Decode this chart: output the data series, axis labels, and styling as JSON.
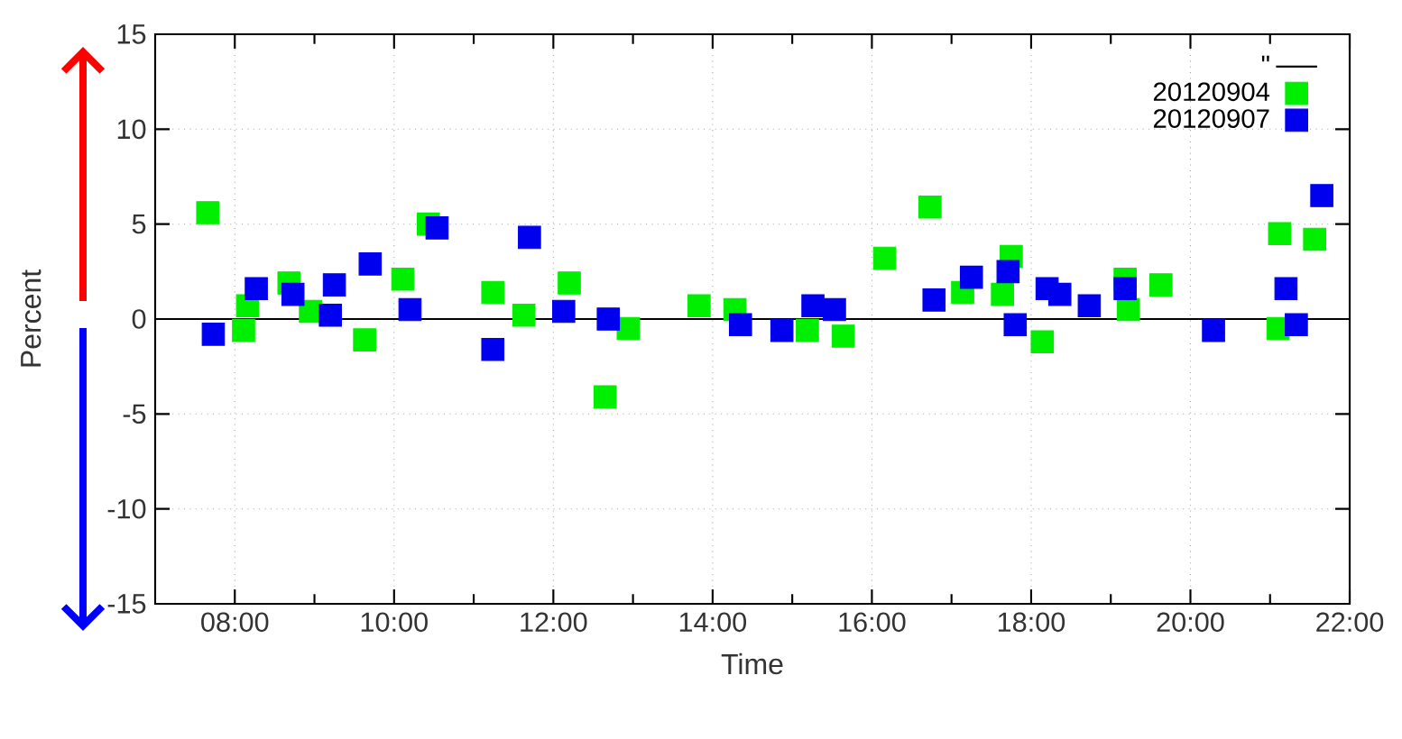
{
  "chart_data": {
    "type": "scatter",
    "xlabel": "Time",
    "ylabel": "Percent",
    "xlim": [
      7,
      22
    ],
    "ylim": [
      -15,
      15
    ],
    "xticks": [
      {
        "value": 8,
        "label": "08:00"
      },
      {
        "value": 9,
        "label": null
      },
      {
        "value": 10,
        "label": "10:00"
      },
      {
        "value": 11,
        "label": null
      },
      {
        "value": 12,
        "label": "12:00"
      },
      {
        "value": 13,
        "label": null
      },
      {
        "value": 14,
        "label": "14:00"
      },
      {
        "value": 15,
        "label": null
      },
      {
        "value": 16,
        "label": "16:00"
      },
      {
        "value": 17,
        "label": null
      },
      {
        "value": 18,
        "label": "18:00"
      },
      {
        "value": 19,
        "label": null
      },
      {
        "value": 20,
        "label": "20:00"
      },
      {
        "value": 21,
        "label": null
      },
      {
        "value": 22,
        "label": "22:00"
      }
    ],
    "yticks": [
      -15,
      -10,
      -5,
      0,
      5,
      10,
      15
    ],
    "grid": true,
    "legend": "top right",
    "marker": "square",
    "series": [
      {
        "name": "\"",
        "type": "line",
        "marker": "none",
        "color": "#000000",
        "x": [
          7,
          22
        ],
        "values": [
          0,
          0
        ]
      },
      {
        "name": "20120904",
        "color": "#00ee00",
        "x": [
          7.66,
          8.11,
          8.16,
          8.68,
          8.95,
          9.63,
          10.11,
          10.43,
          11.24,
          11.63,
          12.2,
          12.65,
          12.94,
          13.83,
          14.28,
          15.19,
          15.64,
          16.16,
          16.73,
          17.14,
          17.64,
          17.75,
          18.14,
          19.18,
          19.22,
          19.63,
          21.1,
          21.12,
          21.56
        ],
        "values": [
          5.6,
          -0.6,
          0.7,
          1.9,
          0.4,
          -1.1,
          2.1,
          5.0,
          1.4,
          0.2,
          1.9,
          -4.1,
          -0.5,
          0.7,
          0.5,
          -0.6,
          -0.9,
          3.2,
          5.9,
          1.4,
          1.3,
          3.3,
          -1.2,
          2.1,
          0.5,
          1.8,
          -0.5,
          4.5,
          4.2
        ]
      },
      {
        "name": "20120907",
        "color": "#0000ee",
        "x": [
          7.73,
          8.27,
          8.73,
          9.2,
          9.25,
          9.7,
          10.2,
          10.54,
          11.24,
          11.7,
          12.13,
          12.69,
          14.35,
          14.87,
          15.26,
          15.53,
          16.78,
          17.25,
          17.71,
          17.8,
          18.2,
          18.36,
          18.73,
          19.18,
          20.29,
          21.2,
          21.33,
          21.65
        ],
        "values": [
          -0.8,
          1.6,
          1.3,
          0.2,
          1.8,
          2.9,
          0.5,
          4.8,
          -1.6,
          4.3,
          0.4,
          0.0,
          -0.3,
          -0.6,
          0.7,
          0.5,
          1.0,
          2.2,
          2.5,
          -0.3,
          1.6,
          1.3,
          0.7,
          1.6,
          -0.6,
          1.6,
          -0.3,
          6.5
        ]
      }
    ]
  }
}
